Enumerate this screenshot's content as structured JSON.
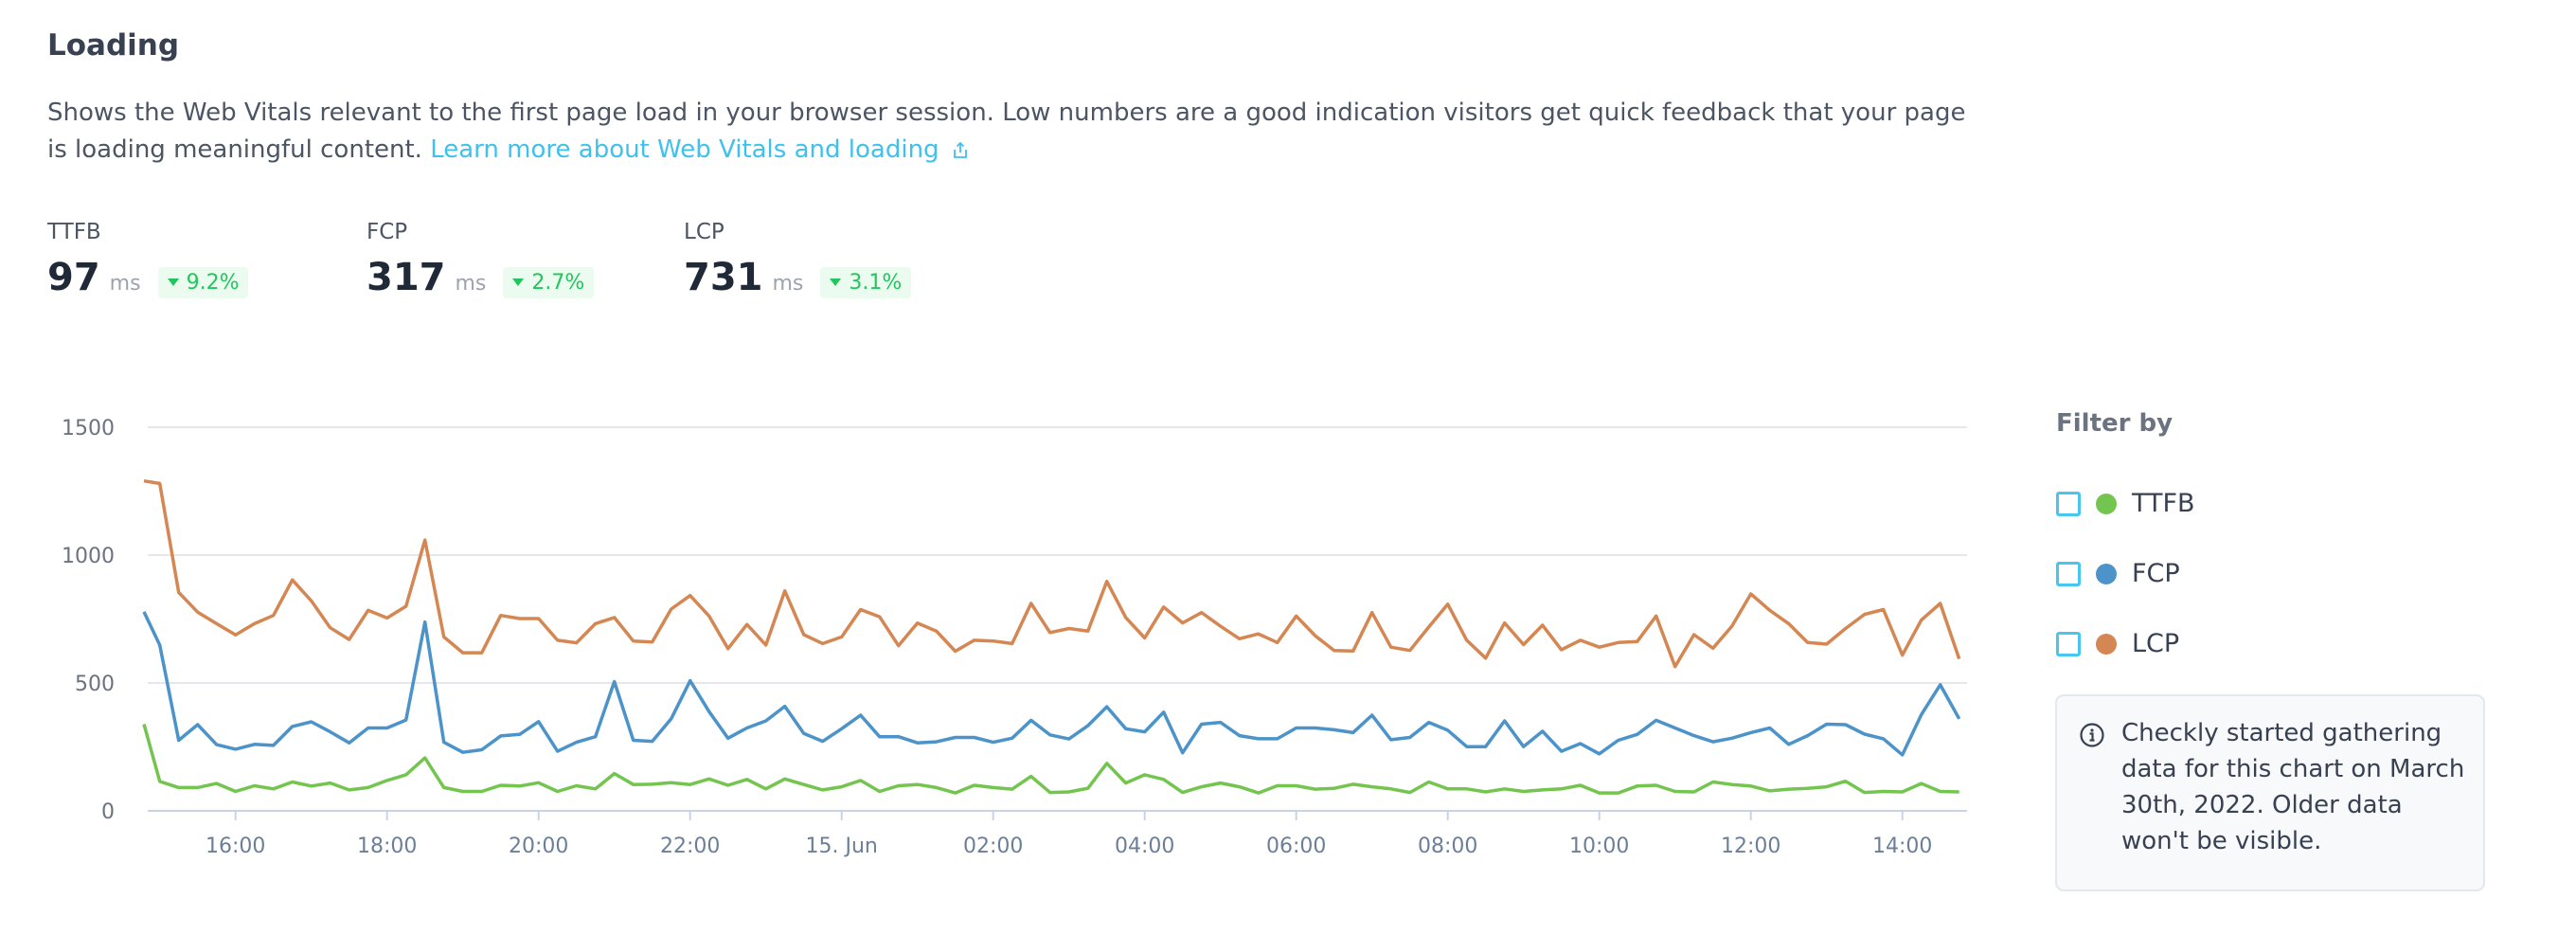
{
  "section": {
    "title": "Loading",
    "description": "Shows the Web Vitals relevant to the first page load in your browser session. Low numbers are a good indication visitors get quick feedback that your page is loading meaningful content.",
    "link_label": "Learn more about Web Vitals and loading",
    "link_icon": "external-link-icon"
  },
  "stats": [
    {
      "label": "TTFB",
      "value": "97",
      "unit": "ms",
      "change": "9.2%",
      "trend": "down"
    },
    {
      "label": "FCP",
      "value": "317",
      "unit": "ms",
      "change": "2.7%",
      "trend": "down"
    },
    {
      "label": "LCP",
      "value": "731",
      "unit": "ms",
      "change": "3.1%",
      "trend": "down"
    }
  ],
  "colors": {
    "TTFB": "#74c54f",
    "FCP": "#4b93c8",
    "LCP": "#d48752",
    "link": "#3fc1ee",
    "badge_text": "#22c55e",
    "checkbox": "#47c6ef"
  },
  "filter": {
    "title": "Filter by",
    "items": [
      {
        "label": "TTFB",
        "checked": false
      },
      {
        "label": "FCP",
        "checked": false
      },
      {
        "label": "LCP",
        "checked": false
      }
    ],
    "info_icon": "info-icon",
    "info_text": "Checkly started gathering data for this chart on March 30th, 2022. Older data won't be visible."
  },
  "chart_data": {
    "type": "line",
    "xlabel": "",
    "ylabel": "",
    "ylim": [
      0,
      1500
    ],
    "yticks": [
      "0",
      "500",
      "1000",
      "1500"
    ],
    "grid": true,
    "x_interval_minutes": 15,
    "x_start": "14 Jun 14:45",
    "x_end": "15 Jun 14:45",
    "xticks": [
      {
        "label": "16:00",
        "index": 5
      },
      {
        "label": "18:00",
        "index": 13
      },
      {
        "label": "20:00",
        "index": 21
      },
      {
        "label": "22:00",
        "index": 29
      },
      {
        "label": "15. Jun",
        "index": 37
      },
      {
        "label": "02:00",
        "index": 45
      },
      {
        "label": "04:00",
        "index": 53
      },
      {
        "label": "06:00",
        "index": 61
      },
      {
        "label": "08:00",
        "index": 69
      },
      {
        "label": "10:00",
        "index": 77
      },
      {
        "label": "12:00",
        "index": 85
      },
      {
        "label": "14:00",
        "index": 93
      }
    ],
    "series": [
      {
        "name": "TTFB",
        "values": [
          339,
          115,
          91,
          91,
          107,
          76,
          98,
          86,
          113,
          97,
          109,
          82,
          91,
          119,
          141,
          207,
          91,
          76,
          76,
          100,
          97,
          110,
          76,
          98,
          86,
          146,
          103,
          104,
          110,
          103,
          125,
          100,
          123,
          86,
          125,
          103,
          82,
          94,
          119,
          76,
          98,
          103,
          91,
          70,
          100,
          91,
          85,
          135,
          72,
          74,
          88,
          186,
          109,
          141,
          123,
          72,
          94,
          109,
          94,
          70,
          98,
          98,
          85,
          88,
          104,
          94,
          86,
          72,
          113,
          86,
          86,
          74,
          86,
          76,
          82,
          86,
          100,
          70,
          70,
          97,
          100,
          76,
          74,
          113,
          103,
          97,
          78,
          85,
          88,
          94,
          116,
          72,
          76,
          74,
          107,
          76,
          74
        ]
      },
      {
        "name": "FCP",
        "values": [
          778,
          648,
          276,
          337,
          259,
          241,
          260,
          256,
          330,
          348,
          309,
          266,
          324,
          324,
          355,
          738,
          268,
          229,
          239,
          293,
          299,
          349,
          233,
          268,
          290,
          505,
          276,
          272,
          360,
          509,
          388,
          284,
          324,
          352,
          409,
          303,
          272,
          321,
          374,
          290,
          290,
          266,
          270,
          287,
          287,
          268,
          284,
          354,
          297,
          281,
          333,
          407,
          321,
          309,
          386,
          227,
          339,
          346,
          294,
          282,
          282,
          324,
          324,
          317,
          306,
          374,
          278,
          287,
          346,
          315,
          251,
          251,
          352,
          251,
          311,
          233,
          263,
          223,
          276,
          299,
          354,
          324,
          294,
          270,
          284,
          306,
          324,
          260,
          294,
          339,
          337,
          300,
          282,
          219,
          376,
          493,
          360
        ]
      },
      {
        "name": "LCP",
        "values": [
          1290,
          1280,
          854,
          777,
          732,
          688,
          732,
          764,
          903,
          821,
          716,
          670,
          784,
          754,
          800,
          1059,
          680,
          618,
          618,
          764,
          752,
          752,
          667,
          657,
          732,
          756,
          664,
          660,
          789,
          842,
          762,
          634,
          729,
          648,
          860,
          689,
          654,
          680,
          787,
          759,
          646,
          734,
          703,
          624,
          667,
          664,
          654,
          811,
          697,
          713,
          703,
          897,
          756,
          676,
          797,
          735,
          775,
          722,
          673,
          692,
          658,
          762,
          685,
          627,
          625,
          775,
          640,
          627,
          719,
          808,
          667,
          597,
          735,
          650,
          726,
          630,
          667,
          640,
          658,
          662,
          762,
          564,
          689,
          636,
          722,
          848,
          784,
          732,
          658,
          652,
          713,
          768,
          787,
          609,
          746,
          811,
          594
        ]
      }
    ]
  }
}
